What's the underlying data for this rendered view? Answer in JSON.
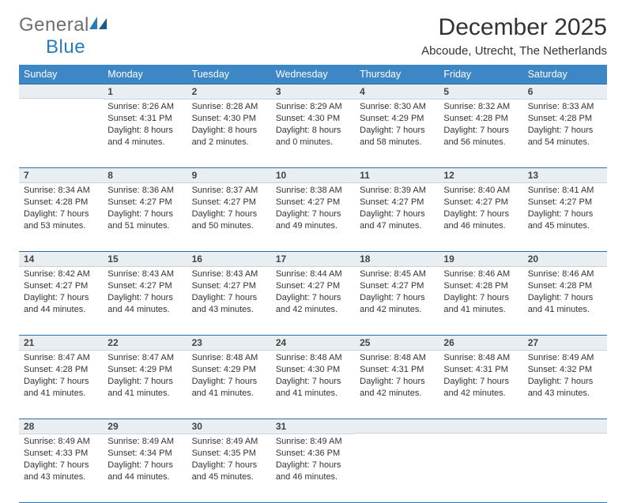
{
  "logo": {
    "word1": "General",
    "word2": "Blue"
  },
  "title": "December 2025",
  "subtitle": "Abcoude, Utrecht, The Netherlands",
  "colors": {
    "header_bg": "#3d87c7",
    "header_text": "#ffffff",
    "daynum_bg": "#e9eef2",
    "border": "#2f6ea3",
    "logo_gray": "#6d6e71",
    "logo_blue": "#2a7ab8",
    "text": "#333333"
  },
  "fonts": {
    "title_size": 30,
    "subtitle_size": 15,
    "header_size": 12.5,
    "cell_size": 11,
    "daynum_size": 12
  },
  "weekdays": [
    "Sunday",
    "Monday",
    "Tuesday",
    "Wednesday",
    "Thursday",
    "Friday",
    "Saturday"
  ],
  "weeks": [
    [
      null,
      {
        "n": "1",
        "sr": "Sunrise: 8:26 AM",
        "ss": "Sunset: 4:31 PM",
        "d1": "Daylight: 8 hours",
        "d2": "and 4 minutes."
      },
      {
        "n": "2",
        "sr": "Sunrise: 8:28 AM",
        "ss": "Sunset: 4:30 PM",
        "d1": "Daylight: 8 hours",
        "d2": "and 2 minutes."
      },
      {
        "n": "3",
        "sr": "Sunrise: 8:29 AM",
        "ss": "Sunset: 4:30 PM",
        "d1": "Daylight: 8 hours",
        "d2": "and 0 minutes."
      },
      {
        "n": "4",
        "sr": "Sunrise: 8:30 AM",
        "ss": "Sunset: 4:29 PM",
        "d1": "Daylight: 7 hours",
        "d2": "and 58 minutes."
      },
      {
        "n": "5",
        "sr": "Sunrise: 8:32 AM",
        "ss": "Sunset: 4:28 PM",
        "d1": "Daylight: 7 hours",
        "d2": "and 56 minutes."
      },
      {
        "n": "6",
        "sr": "Sunrise: 8:33 AM",
        "ss": "Sunset: 4:28 PM",
        "d1": "Daylight: 7 hours",
        "d2": "and 54 minutes."
      }
    ],
    [
      {
        "n": "7",
        "sr": "Sunrise: 8:34 AM",
        "ss": "Sunset: 4:28 PM",
        "d1": "Daylight: 7 hours",
        "d2": "and 53 minutes."
      },
      {
        "n": "8",
        "sr": "Sunrise: 8:36 AM",
        "ss": "Sunset: 4:27 PM",
        "d1": "Daylight: 7 hours",
        "d2": "and 51 minutes."
      },
      {
        "n": "9",
        "sr": "Sunrise: 8:37 AM",
        "ss": "Sunset: 4:27 PM",
        "d1": "Daylight: 7 hours",
        "d2": "and 50 minutes."
      },
      {
        "n": "10",
        "sr": "Sunrise: 8:38 AM",
        "ss": "Sunset: 4:27 PM",
        "d1": "Daylight: 7 hours",
        "d2": "and 49 minutes."
      },
      {
        "n": "11",
        "sr": "Sunrise: 8:39 AM",
        "ss": "Sunset: 4:27 PM",
        "d1": "Daylight: 7 hours",
        "d2": "and 47 minutes."
      },
      {
        "n": "12",
        "sr": "Sunrise: 8:40 AM",
        "ss": "Sunset: 4:27 PM",
        "d1": "Daylight: 7 hours",
        "d2": "and 46 minutes."
      },
      {
        "n": "13",
        "sr": "Sunrise: 8:41 AM",
        "ss": "Sunset: 4:27 PM",
        "d1": "Daylight: 7 hours",
        "d2": "and 45 minutes."
      }
    ],
    [
      {
        "n": "14",
        "sr": "Sunrise: 8:42 AM",
        "ss": "Sunset: 4:27 PM",
        "d1": "Daylight: 7 hours",
        "d2": "and 44 minutes."
      },
      {
        "n": "15",
        "sr": "Sunrise: 8:43 AM",
        "ss": "Sunset: 4:27 PM",
        "d1": "Daylight: 7 hours",
        "d2": "and 44 minutes."
      },
      {
        "n": "16",
        "sr": "Sunrise: 8:43 AM",
        "ss": "Sunset: 4:27 PM",
        "d1": "Daylight: 7 hours",
        "d2": "and 43 minutes."
      },
      {
        "n": "17",
        "sr": "Sunrise: 8:44 AM",
        "ss": "Sunset: 4:27 PM",
        "d1": "Daylight: 7 hours",
        "d2": "and 42 minutes."
      },
      {
        "n": "18",
        "sr": "Sunrise: 8:45 AM",
        "ss": "Sunset: 4:27 PM",
        "d1": "Daylight: 7 hours",
        "d2": "and 42 minutes."
      },
      {
        "n": "19",
        "sr": "Sunrise: 8:46 AM",
        "ss": "Sunset: 4:28 PM",
        "d1": "Daylight: 7 hours",
        "d2": "and 41 minutes."
      },
      {
        "n": "20",
        "sr": "Sunrise: 8:46 AM",
        "ss": "Sunset: 4:28 PM",
        "d1": "Daylight: 7 hours",
        "d2": "and 41 minutes."
      }
    ],
    [
      {
        "n": "21",
        "sr": "Sunrise: 8:47 AM",
        "ss": "Sunset: 4:28 PM",
        "d1": "Daylight: 7 hours",
        "d2": "and 41 minutes."
      },
      {
        "n": "22",
        "sr": "Sunrise: 8:47 AM",
        "ss": "Sunset: 4:29 PM",
        "d1": "Daylight: 7 hours",
        "d2": "and 41 minutes."
      },
      {
        "n": "23",
        "sr": "Sunrise: 8:48 AM",
        "ss": "Sunset: 4:29 PM",
        "d1": "Daylight: 7 hours",
        "d2": "and 41 minutes."
      },
      {
        "n": "24",
        "sr": "Sunrise: 8:48 AM",
        "ss": "Sunset: 4:30 PM",
        "d1": "Daylight: 7 hours",
        "d2": "and 41 minutes."
      },
      {
        "n": "25",
        "sr": "Sunrise: 8:48 AM",
        "ss": "Sunset: 4:31 PM",
        "d1": "Daylight: 7 hours",
        "d2": "and 42 minutes."
      },
      {
        "n": "26",
        "sr": "Sunrise: 8:48 AM",
        "ss": "Sunset: 4:31 PM",
        "d1": "Daylight: 7 hours",
        "d2": "and 42 minutes."
      },
      {
        "n": "27",
        "sr": "Sunrise: 8:49 AM",
        "ss": "Sunset: 4:32 PM",
        "d1": "Daylight: 7 hours",
        "d2": "and 43 minutes."
      }
    ],
    [
      {
        "n": "28",
        "sr": "Sunrise: 8:49 AM",
        "ss": "Sunset: 4:33 PM",
        "d1": "Daylight: 7 hours",
        "d2": "and 43 minutes."
      },
      {
        "n": "29",
        "sr": "Sunrise: 8:49 AM",
        "ss": "Sunset: 4:34 PM",
        "d1": "Daylight: 7 hours",
        "d2": "and 44 minutes."
      },
      {
        "n": "30",
        "sr": "Sunrise: 8:49 AM",
        "ss": "Sunset: 4:35 PM",
        "d1": "Daylight: 7 hours",
        "d2": "and 45 minutes."
      },
      {
        "n": "31",
        "sr": "Sunrise: 8:49 AM",
        "ss": "Sunset: 4:36 PM",
        "d1": "Daylight: 7 hours",
        "d2": "and 46 minutes."
      },
      null,
      null,
      null
    ]
  ]
}
